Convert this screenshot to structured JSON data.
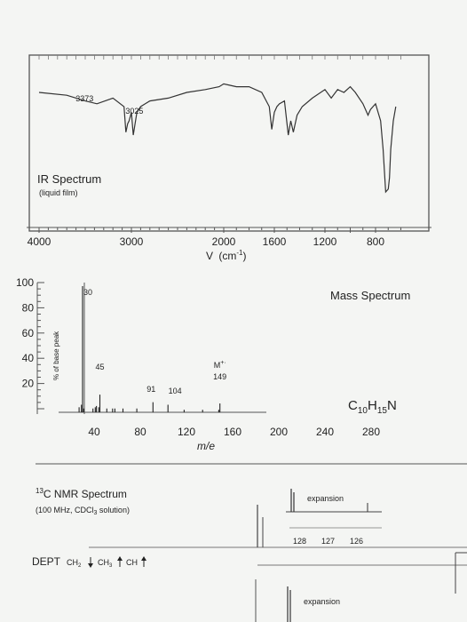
{
  "chart_data": [
    {
      "type": "line",
      "title": "IR Spectrum",
      "subtitle": "(liquid film)",
      "xlabel": "V (cm-1)",
      "xlabel_main": "V",
      "xlabel_unit": "(cm",
      "xlabel_exp": "-1",
      "xlabel_close": ")",
      "x_ticks": [
        4000,
        3000,
        2000,
        1600,
        1200,
        800
      ],
      "x_scale": "wavenumber, expanded below 2000",
      "peak_labels": [
        {
          "label": "3373",
          "x": 3373
        },
        {
          "label": "3025",
          "x": 3025
        }
      ],
      "transmittance_trace": {
        "x": [
          4000,
          3700,
          3500,
          3373,
          3200,
          3080,
          3060,
          3040,
          3025,
          3000,
          2980,
          2940,
          2900,
          2850,
          2800,
          2600,
          2400,
          2200,
          2050,
          2000,
          1950,
          1900,
          1800,
          1700,
          1640,
          1620,
          1600,
          1580,
          1560,
          1520,
          1490,
          1470,
          1450,
          1420,
          1380,
          1300,
          1200,
          1150,
          1100,
          1050,
          1000,
          960,
          900,
          860,
          840,
          820,
          800,
          760,
          740,
          720,
          700,
          690,
          680,
          660,
          640
        ],
        "y": [
          80,
          78,
          74,
          72,
          76,
          70,
          52,
          58,
          60,
          66,
          50,
          66,
          70,
          72,
          74,
          76,
          80,
          82,
          84,
          86,
          85,
          84,
          84,
          80,
          70,
          54,
          66,
          70,
          72,
          74,
          50,
          60,
          52,
          64,
          70,
          76,
          82,
          76,
          82,
          80,
          84,
          80,
          72,
          64,
          68,
          70,
          72,
          60,
          40,
          10,
          12,
          20,
          40,
          60,
          70
        ],
        "ylim": [
          0,
          100
        ]
      }
    },
    {
      "type": "bar",
      "title": "Mass Spectrum",
      "formula": "C10H15N",
      "formula_main": "C",
      "formula_sub1": "10",
      "formula_h": "H",
      "formula_sub2": "15",
      "formula_n": "N",
      "ylabel": "% of base peak",
      "xlabel": "m/e",
      "y_ticks": [
        100,
        80,
        60,
        40,
        20
      ],
      "x_ticks": [
        40,
        80,
        120,
        160,
        200,
        240,
        280
      ],
      "ylim": [
        0,
        100
      ],
      "xlim": [
        10,
        300
      ],
      "peaks": {
        "x": [
          27,
          29,
          30,
          31,
          39,
          41,
          42,
          44,
          45,
          51,
          56,
          58,
          65,
          77,
          91,
          104,
          118,
          134,
          148,
          149
        ],
        "y": [
          4,
          6,
          100,
          3,
          3,
          4,
          5,
          4,
          14,
          3,
          3,
          3,
          3,
          3,
          8,
          6,
          2,
          2,
          2,
          7
        ]
      },
      "peak_labels": [
        {
          "label": "30",
          "x": 30,
          "y": 100
        },
        {
          "label": "45",
          "x": 45,
          "y": 14
        },
        {
          "label": "91",
          "x": 91,
          "y": 8
        },
        {
          "label": "104",
          "x": 104,
          "y": 6
        },
        {
          "label": "M",
          "superscript": "+·",
          "x": 149,
          "y": 7
        },
        {
          "label": "149",
          "x": 149,
          "y": 7
        }
      ]
    },
    {
      "type": "line",
      "title": "13C NMR Spectrum",
      "title_sup": "13",
      "title_rest": "C NMR Spectrum",
      "subtitle": "(100 MHz, CDCl3 solution)",
      "subtitle_text": "(100 MHz, CDCl",
      "subtitle_sub": "3",
      "subtitle_end": " solution)",
      "expansion_label": "expansion",
      "expansion_ticks": [
        "128",
        "127",
        "126"
      ],
      "dept_label": "DEPT",
      "dept_items": [
        {
          "label": "CH",
          "sub": "2",
          "direction": "down"
        },
        {
          "label": "CH",
          "sub": "3",
          "direction": "up"
        },
        {
          "label": "CH",
          "sub": "",
          "direction": "up"
        }
      ]
    }
  ]
}
